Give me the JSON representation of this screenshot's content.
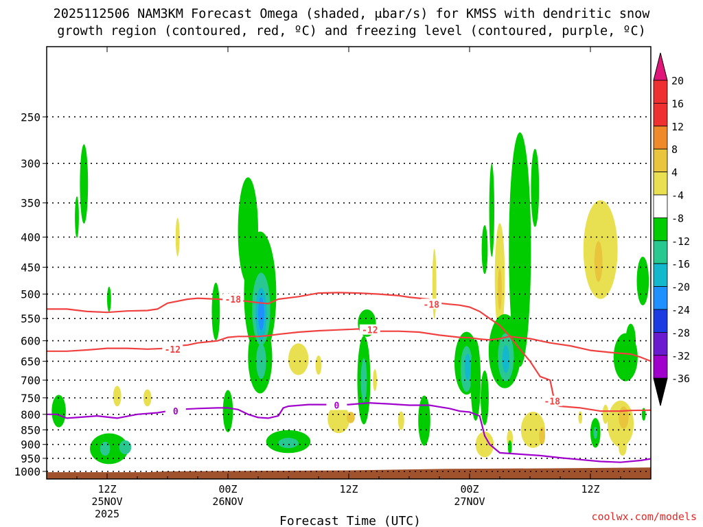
{
  "title_line1": "2025112506 NAM3KM Forecast Omega (shaded, μbar/s) for KMSS with dendritic snow",
  "title_line2": "growth region (contoured, red, ºC) and freezing level (contoured, purple, ºC)",
  "xlabel": "Forecast Time (UTC)",
  "credit": "coolwx.com/models",
  "chart_data": {
    "type": "heatmap",
    "title": "2025112506 NAM3KM Forecast Omega (shaded, μbar/s) for KMSS with dendritic snow growth region (contoured, red, ºC) and freezing level (contoured, purple, ºC)",
    "xlabel": "Forecast Time (UTC)",
    "ylabel": "",
    "xlim_hours": [
      0,
      60
    ],
    "ylim_hPa": [
      1030,
      190
    ],
    "y_ticks": [
      250,
      300,
      350,
      400,
      450,
      500,
      550,
      600,
      650,
      700,
      750,
      800,
      850,
      900,
      950,
      1000
    ],
    "x_ticks": [
      {
        "hour": 6,
        "lines": [
          "12Z",
          "25NOV",
          "2025"
        ]
      },
      {
        "hour": 18,
        "lines": [
          "00Z",
          "26NOV"
        ]
      },
      {
        "hour": 30,
        "lines": [
          "12Z"
        ]
      },
      {
        "hour": 42,
        "lines": [
          "00Z",
          "27NOV"
        ]
      },
      {
        "hour": 54,
        "lines": [
          "12Z"
        ]
      }
    ],
    "grid": true,
    "colorbar": {
      "labels": [
        "20",
        "16",
        "12",
        "8",
        "4",
        "-4",
        "-8",
        "-12",
        "-16",
        "-20",
        "-24",
        "-28",
        "-32",
        "-36"
      ],
      "colors": [
        "#e8f05a",
        "#ee3030",
        "#ee8a2a",
        "#e8c53c",
        "#e8e050",
        "#ffffff",
        "#00cc00",
        "#28c890",
        "#14b8cc",
        "#1e90ff",
        "#1a3ce0",
        "#6a1bd0",
        "#a000cc",
        "#a8a8a8"
      ],
      "extend_top_color": "#e0157a",
      "extend_bottom_color": "#000000"
    },
    "omega_features": [
      {
        "hour": 3.7,
        "pres": 325,
        "value": -6,
        "rx": 0.4,
        "ry": 50
      },
      {
        "hour": 3.0,
        "pres": 370,
        "value": -5,
        "rx": 0.2,
        "ry": 30
      },
      {
        "hour": 6.2,
        "pres": 510,
        "value": -5,
        "rx": 0.2,
        "ry": 25
      },
      {
        "hour": 1.2,
        "pres": 790,
        "value": -6,
        "rx": 0.7,
        "ry": 50
      },
      {
        "hour": 6.2,
        "pres": 915,
        "value": -7,
        "rx": 1.9,
        "ry": 55
      },
      {
        "hour": 5.8,
        "pres": 915,
        "value": -9,
        "rx": 0.5,
        "ry": 25
      },
      {
        "hour": 7.8,
        "pres": 910,
        "value": -9,
        "rx": 0.6,
        "ry": 25
      },
      {
        "hour": 7.0,
        "pres": 745,
        "value": 5,
        "rx": 0.4,
        "ry": 30
      },
      {
        "hour": 10.0,
        "pres": 750,
        "value": 5,
        "rx": 0.4,
        "ry": 25
      },
      {
        "hour": 13.0,
        "pres": 400,
        "value": 5,
        "rx": 0.2,
        "ry": 30
      },
      {
        "hour": 16.8,
        "pres": 535,
        "value": -6,
        "rx": 0.4,
        "ry": 60
      },
      {
        "hour": 18.0,
        "pres": 790,
        "value": -6,
        "rx": 0.5,
        "ry": 65
      },
      {
        "hour": 20.0,
        "pres": 390,
        "value": -6,
        "rx": 1.0,
        "ry": 80
      },
      {
        "hour": 21.2,
        "pres": 500,
        "value": -6,
        "rx": 1.6,
        "ry": 120
      },
      {
        "hour": 21.2,
        "pres": 640,
        "value": -6,
        "rx": 1.2,
        "ry": 90
      },
      {
        "hour": 21.3,
        "pres": 530,
        "value": -10,
        "rx": 0.9,
        "ry": 75
      },
      {
        "hour": 21.3,
        "pres": 540,
        "value": -15,
        "rx": 0.55,
        "ry": 55
      },
      {
        "hour": 21.3,
        "pres": 540,
        "value": -19,
        "rx": 0.3,
        "ry": 35
      },
      {
        "hour": 21.3,
        "pres": 650,
        "value": -10,
        "rx": 0.5,
        "ry": 45
      },
      {
        "hour": 24.0,
        "pres": 890,
        "value": -6,
        "rx": 2.2,
        "ry": 40
      },
      {
        "hour": 24.0,
        "pres": 895,
        "value": -10,
        "rx": 1.0,
        "ry": 18
      },
      {
        "hour": 25.0,
        "pres": 645,
        "value": 5,
        "rx": 1.0,
        "ry": 40
      },
      {
        "hour": 27.0,
        "pres": 660,
        "value": 5,
        "rx": 0.3,
        "ry": 25
      },
      {
        "hour": 29.0,
        "pres": 815,
        "value": 5,
        "rx": 1.1,
        "ry": 45
      },
      {
        "hour": 30.2,
        "pres": 810,
        "value": 9,
        "rx": 0.4,
        "ry": 18
      },
      {
        "hour": 31.8,
        "pres": 560,
        "value": -6,
        "rx": 0.9,
        "ry": 30
      },
      {
        "hour": 31.5,
        "pres": 700,
        "value": -6,
        "rx": 0.65,
        "ry": 120
      },
      {
        "hour": 31.5,
        "pres": 700,
        "value": -10,
        "rx": 0.3,
        "ry": 60
      },
      {
        "hour": 32.6,
        "pres": 700,
        "value": 5,
        "rx": 0.2,
        "ry": 30
      },
      {
        "hour": 35.2,
        "pres": 820,
        "value": 5,
        "rx": 0.3,
        "ry": 30
      },
      {
        "hour": 37.5,
        "pres": 820,
        "value": -6,
        "rx": 0.6,
        "ry": 80
      },
      {
        "hour": 38.5,
        "pres": 480,
        "value": 5,
        "rx": 0.2,
        "ry": 65
      },
      {
        "hour": 41.7,
        "pres": 655,
        "value": -6,
        "rx": 1.2,
        "ry": 80
      },
      {
        "hour": 41.7,
        "pres": 670,
        "value": -10,
        "rx": 0.6,
        "ry": 60
      },
      {
        "hour": 41.8,
        "pres": 665,
        "value": -15,
        "rx": 0.3,
        "ry": 35
      },
      {
        "hour": 42.6,
        "pres": 700,
        "value": -6,
        "rx": 0.5,
        "ry": 110
      },
      {
        "hour": 43.5,
        "pres": 750,
        "value": -6,
        "rx": 0.4,
        "ry": 80
      },
      {
        "hour": 43.5,
        "pres": 420,
        "value": -6,
        "rx": 0.3,
        "ry": 40
      },
      {
        "hour": 44.2,
        "pres": 360,
        "value": -6,
        "rx": 0.25,
        "ry": 65
      },
      {
        "hour": 45.0,
        "pres": 470,
        "value": 5,
        "rx": 0.5,
        "ry": 100
      },
      {
        "hour": 45.0,
        "pres": 490,
        "value": 9,
        "rx": 0.2,
        "ry": 40
      },
      {
        "hour": 46.0,
        "pres": 880,
        "value": 5,
        "rx": 0.3,
        "ry": 30
      },
      {
        "hour": 43.5,
        "pres": 900,
        "value": 5,
        "rx": 0.9,
        "ry": 45
      },
      {
        "hour": 45.5,
        "pres": 625,
        "value": -6,
        "rx": 1.6,
        "ry": 90
      },
      {
        "hour": 45.6,
        "pres": 640,
        "value": -10,
        "rx": 0.8,
        "ry": 60
      },
      {
        "hour": 45.6,
        "pres": 645,
        "value": -15,
        "rx": 0.35,
        "ry": 35
      },
      {
        "hour": 47.0,
        "pres": 420,
        "value": -6,
        "rx": 1.1,
        "ry": 180
      },
      {
        "hour": 48.5,
        "pres": 330,
        "value": -6,
        "rx": 0.4,
        "ry": 50
      },
      {
        "hour": 46.0,
        "pres": 910,
        "value": -6,
        "rx": 0.2,
        "ry": 25
      },
      {
        "hour": 48.3,
        "pres": 850,
        "value": 5,
        "rx": 1.2,
        "ry": 60
      },
      {
        "hour": 49.2,
        "pres": 870,
        "value": 9,
        "rx": 0.3,
        "ry": 30
      },
      {
        "hour": 55.0,
        "pres": 420,
        "value": 5,
        "rx": 1.7,
        "ry": 80
      },
      {
        "hour": 54.8,
        "pres": 440,
        "value": 9,
        "rx": 0.4,
        "ry": 35
      },
      {
        "hour": 53.0,
        "pres": 810,
        "value": 5,
        "rx": 0.2,
        "ry": 20
      },
      {
        "hour": 54.5,
        "pres": 860,
        "value": -6,
        "rx": 0.5,
        "ry": 50
      },
      {
        "hour": 54.5,
        "pres": 860,
        "value": -10,
        "rx": 0.2,
        "ry": 20
      },
      {
        "hour": 55.5,
        "pres": 800,
        "value": 5,
        "rx": 0.3,
        "ry": 30
      },
      {
        "hour": 57.0,
        "pres": 830,
        "value": 5,
        "rx": 1.3,
        "ry": 75
      },
      {
        "hour": 57.3,
        "pres": 810,
        "value": 9,
        "rx": 0.5,
        "ry": 35
      },
      {
        "hour": 57.2,
        "pres": 910,
        "value": 5,
        "rx": 0.4,
        "ry": 30
      },
      {
        "hour": 57.5,
        "pres": 640,
        "value": -6,
        "rx": 1.2,
        "ry": 60
      },
      {
        "hour": 58.0,
        "pres": 600,
        "value": -6,
        "rx": 0.5,
        "ry": 40
      },
      {
        "hour": 59.2,
        "pres": 475,
        "value": -6,
        "rx": 0.6,
        "ry": 45
      },
      {
        "hour": 59.3,
        "pres": 800,
        "value": -6,
        "rx": 0.2,
        "ry": 20
      }
    ],
    "contours": [
      {
        "name": "-18",
        "color": "#f04040",
        "points": [
          [
            0,
            530
          ],
          [
            2,
            530
          ],
          [
            4,
            535
          ],
          [
            6,
            537
          ],
          [
            8,
            534
          ],
          [
            10,
            533
          ],
          [
            11,
            530
          ],
          [
            12,
            518
          ],
          [
            14,
            510
          ],
          [
            15,
            508
          ],
          [
            17,
            510
          ],
          [
            19,
            512
          ],
          [
            21,
            517
          ],
          [
            22,
            519
          ],
          [
            23,
            510
          ],
          [
            25,
            505
          ],
          [
            27,
            498
          ],
          [
            29,
            497
          ],
          [
            31,
            498
          ],
          [
            33,
            500
          ],
          [
            35,
            503
          ],
          [
            36,
            506
          ],
          [
            37,
            508
          ],
          [
            38,
            510
          ],
          [
            39,
            518
          ],
          [
            40,
            520
          ],
          [
            41,
            522
          ],
          [
            42,
            526
          ],
          [
            43,
            535
          ],
          [
            44,
            550
          ],
          [
            45,
            565
          ],
          [
            46,
            590
          ],
          [
            47,
            620
          ],
          [
            48,
            650
          ],
          [
            49,
            690
          ],
          [
            50,
            700
          ],
          [
            50.5,
            770
          ],
          [
            51,
            775
          ],
          [
            53,
            780
          ],
          [
            55,
            790
          ],
          [
            57,
            790
          ],
          [
            58,
            788
          ],
          [
            60,
            787
          ]
        ],
        "labels": [
          {
            "hour": 18.5,
            "pres": 510
          },
          {
            "hour": 38.2,
            "pres": 520
          },
          {
            "hour": 50.2,
            "pres": 760
          }
        ]
      },
      {
        "name": "-12",
        "color": "#f04040",
        "points": [
          [
            0,
            625
          ],
          [
            2,
            625
          ],
          [
            4,
            622
          ],
          [
            6,
            618
          ],
          [
            8,
            618
          ],
          [
            10,
            620
          ],
          [
            12,
            618
          ],
          [
            13,
            612
          ],
          [
            14,
            610
          ],
          [
            15,
            605
          ],
          [
            17,
            600
          ],
          [
            18,
            592
          ],
          [
            19,
            590
          ],
          [
            21,
            590
          ],
          [
            22,
            588
          ],
          [
            23,
            585
          ],
          [
            25,
            580
          ],
          [
            27,
            577
          ],
          [
            29,
            575
          ],
          [
            31,
            573
          ],
          [
            33,
            578
          ],
          [
            35,
            578
          ],
          [
            37,
            580
          ],
          [
            39,
            587
          ],
          [
            41,
            592
          ],
          [
            42,
            593
          ],
          [
            43,
            596
          ],
          [
            44,
            598
          ],
          [
            45,
            595
          ],
          [
            46,
            590
          ],
          [
            47,
            593
          ],
          [
            48,
            595
          ],
          [
            50,
            605
          ],
          [
            52,
            612
          ],
          [
            54,
            623
          ],
          [
            56,
            628
          ],
          [
            58,
            632
          ],
          [
            59,
            640
          ],
          [
            60,
            650
          ]
        ],
        "labels": [
          {
            "hour": 12.5,
            "pres": 620
          },
          {
            "hour": 32.1,
            "pres": 575
          }
        ]
      },
      {
        "name": "0",
        "color": "#a000cc",
        "points": [
          [
            0,
            800
          ],
          [
            1,
            800
          ],
          [
            2,
            812
          ],
          [
            3,
            810
          ],
          [
            5,
            805
          ],
          [
            7,
            812
          ],
          [
            9,
            800
          ],
          [
            11,
            795
          ],
          [
            13,
            785
          ],
          [
            15,
            782
          ],
          [
            17,
            780
          ],
          [
            18,
            780
          ],
          [
            19,
            785
          ],
          [
            20,
            800
          ],
          [
            21,
            810
          ],
          [
            22,
            812
          ],
          [
            23,
            805
          ],
          [
            23.5,
            780
          ],
          [
            24,
            775
          ],
          [
            26,
            770
          ],
          [
            28,
            770
          ],
          [
            30,
            770
          ],
          [
            32,
            765
          ],
          [
            34,
            768
          ],
          [
            36,
            772
          ],
          [
            38,
            772
          ],
          [
            40,
            782
          ],
          [
            41,
            790
          ],
          [
            42,
            793
          ],
          [
            43,
            805
          ],
          [
            43.5,
            870
          ],
          [
            44,
            900
          ],
          [
            45,
            930
          ],
          [
            47,
            935
          ],
          [
            49,
            940
          ],
          [
            51,
            948
          ],
          [
            53,
            955
          ],
          [
            55,
            962
          ],
          [
            57,
            965
          ],
          [
            59,
            958
          ],
          [
            60,
            952
          ]
        ],
        "labels": [
          {
            "hour": 12.8,
            "pres": 790
          },
          {
            "hour": 28.8,
            "pres": 772
          }
        ]
      }
    ]
  }
}
